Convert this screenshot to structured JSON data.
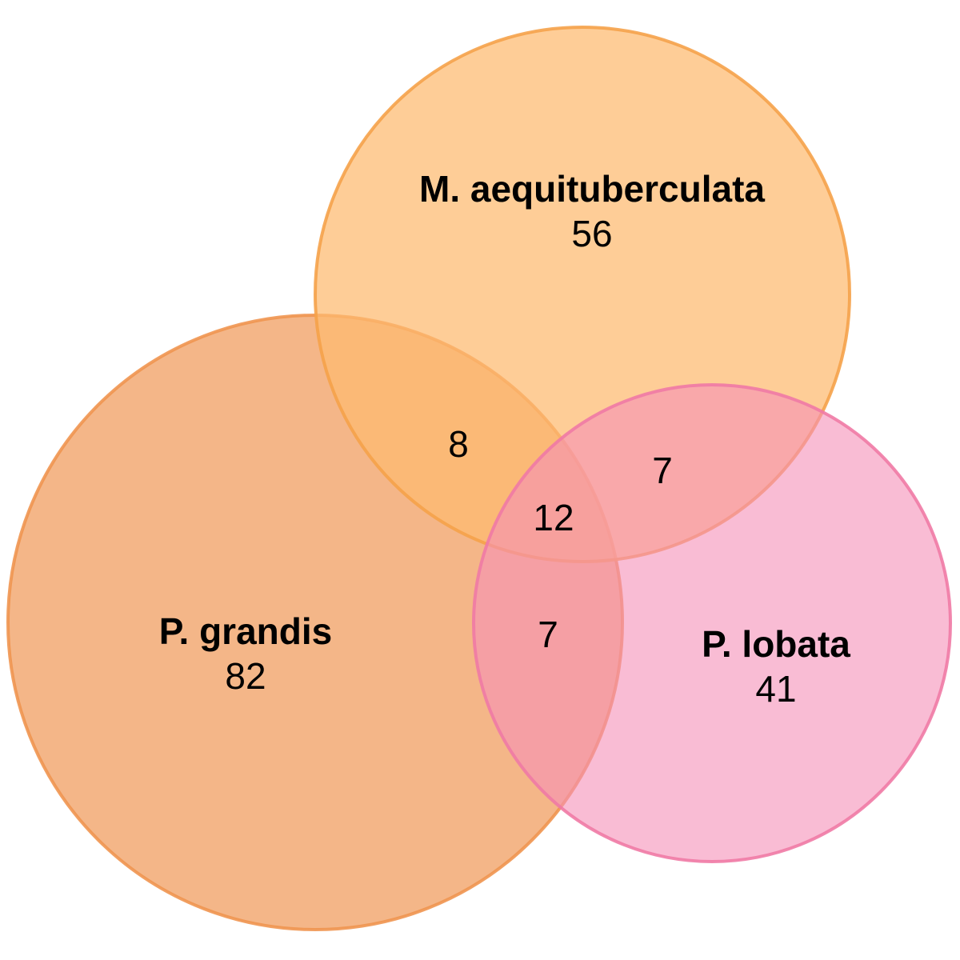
{
  "venn": {
    "sets": [
      {
        "id": "m-aequituberculata",
        "name": "M. aequituberculata",
        "count": "56",
        "fill": "#fdba6f",
        "stroke": "#f5a24a"
      },
      {
        "id": "p-grandis",
        "name": "P. grandis",
        "count": "82",
        "fill": "#f1a46a",
        "stroke": "#ef9550"
      },
      {
        "id": "p-lobata",
        "name": "P. lobata",
        "count": "41",
        "fill": "#f58fb8",
        "stroke": "#f07aa5"
      }
    ],
    "intersections": {
      "m_and_pg": "8",
      "m_and_pl": "7",
      "pg_and_pl": "7",
      "all_three": "12"
    }
  }
}
